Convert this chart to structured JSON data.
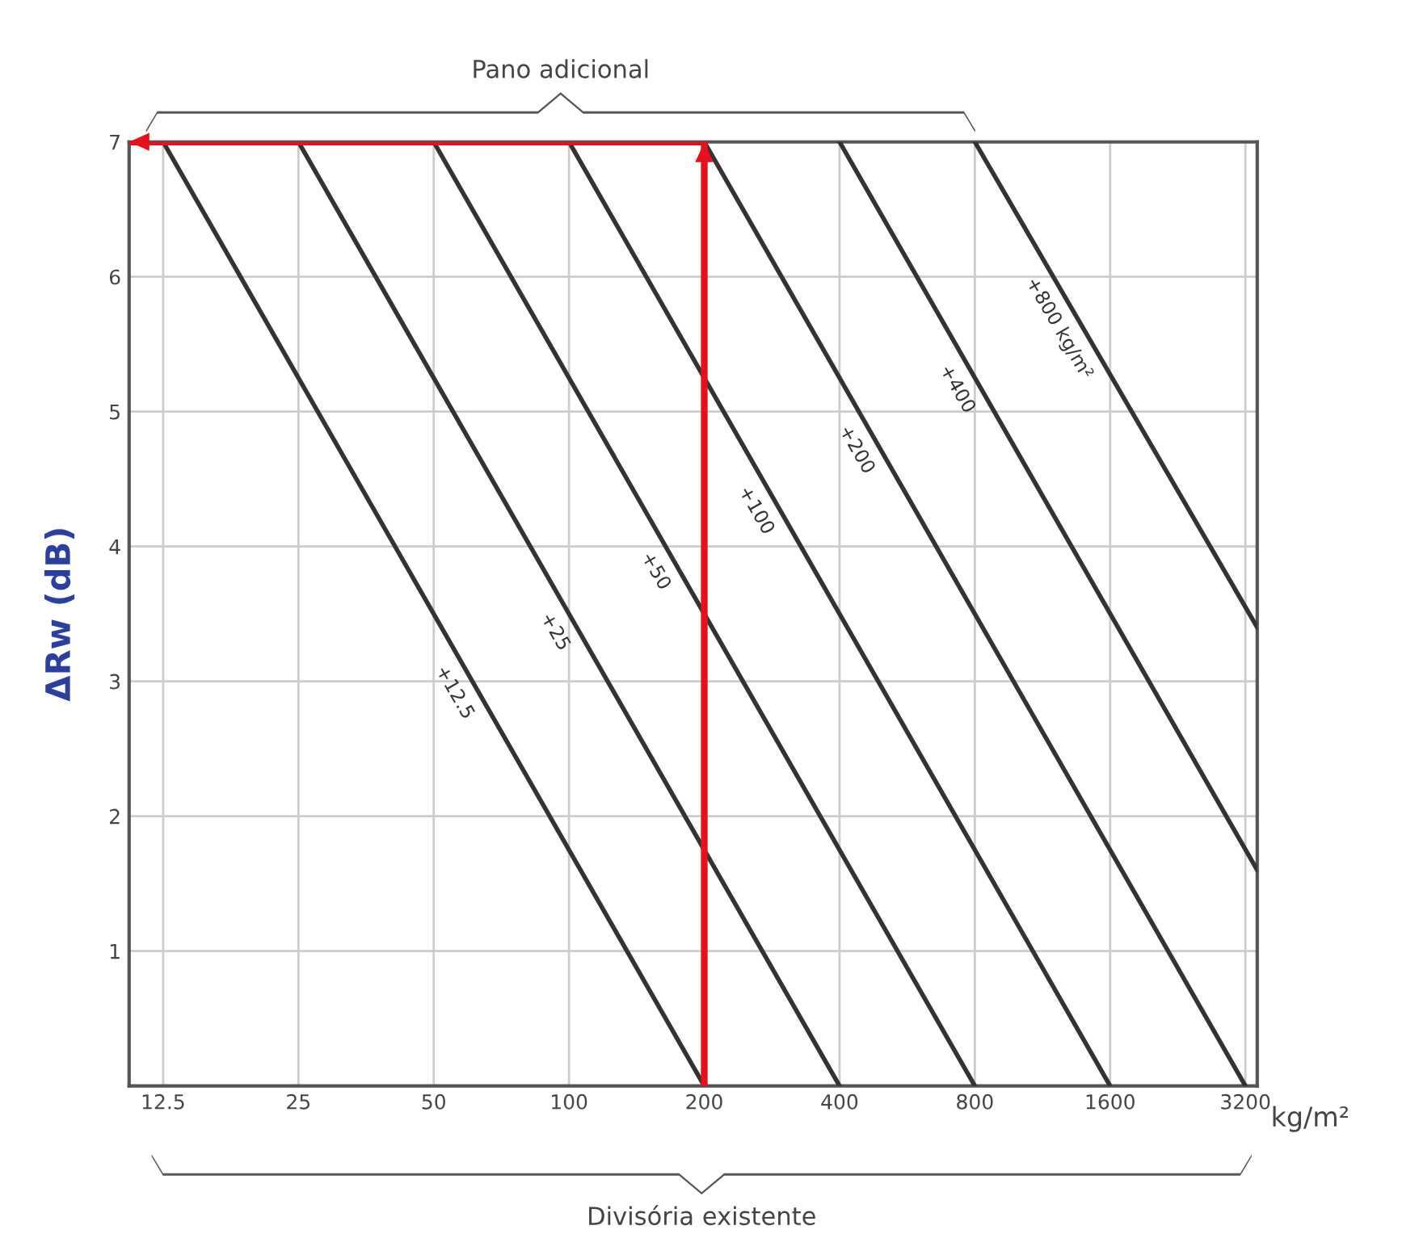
{
  "chart_data": {
    "type": "line",
    "xlabel": "kg/m²",
    "ylabel": "ΔRw (dB)",
    "annotations": [
      "Pano adicional",
      "Divisória existente"
    ],
    "log": "x",
    "grid": true,
    "legend": false,
    "marker": "none",
    "line_style": "solid",
    "xlim": [
      10.5,
      3400
    ],
    "xticks": [
      12.5,
      25,
      50,
      100,
      200,
      400,
      800,
      1600,
      3200
    ],
    "ylim": [
      0,
      7
    ],
    "yticks": [
      {
        "value": 0,
        "label": null
      },
      1,
      2,
      3,
      4,
      5,
      6,
      7
    ],
    "series": [
      {
        "name": "+12.5",
        "color": "#333333",
        "x": [
          12.5,
          200
        ],
        "values": [
          7,
          0
        ]
      },
      {
        "name": "+25",
        "color": "#333333",
        "x": [
          25,
          400
        ],
        "values": [
          7,
          0
        ]
      },
      {
        "name": "+50",
        "color": "#333333",
        "x": [
          50,
          800
        ],
        "values": [
          7,
          0
        ]
      },
      {
        "name": "+100",
        "color": "#333333",
        "x": [
          100,
          1600
        ],
        "values": [
          7,
          0
        ]
      },
      {
        "name": "+200",
        "color": "#333333",
        "x": [
          200,
          3200
        ],
        "values": [
          7,
          0
        ]
      },
      {
        "name": "+400",
        "color": "#333333",
        "x": [
          400,
          3400
        ],
        "values": [
          7,
          1.6
        ]
      },
      {
        "name": "+800 kg/m²",
        "color": "#333333",
        "x": [
          800,
          3400
        ],
        "values": [
          7,
          3.4
        ]
      },
      {
        "color": "#e8101a",
        "x": [
          200,
          200,
          10.5
        ],
        "values": [
          0,
          7,
          7
        ]
      }
    ]
  }
}
